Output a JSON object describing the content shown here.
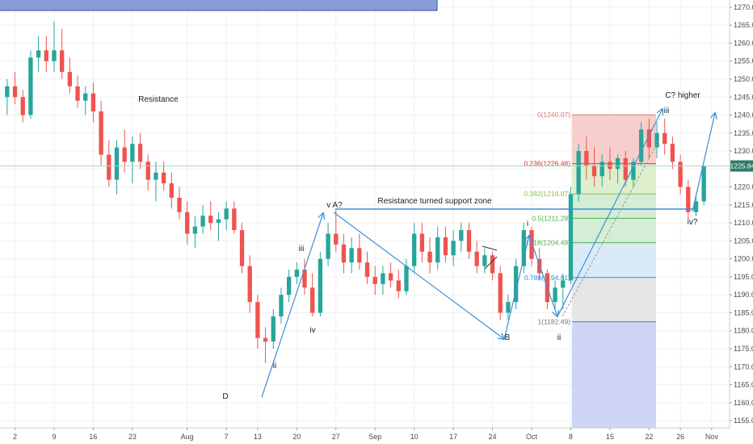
{
  "chart_data": {
    "type": "candlestick",
    "colors": {
      "up": "#26a69a",
      "down": "#ef5350",
      "grid": "#eef0f3",
      "annotation_line": "#3d8fd9",
      "current_price_line": "#a8d5c9",
      "price_badge": "#2e7d6a",
      "fib_red": "#d32f2f",
      "fib_green": "#66bb6a",
      "fib_blue": "#2196f3",
      "fib_gray": "#9e9e9e",
      "overlay_box": "#8b9bd6"
    },
    "y_axis": {
      "ticks": [
        "1155.00",
        "1160.00",
        "1165.00",
        "1170.00",
        "1175.00",
        "1180.00",
        "1185.00",
        "1190.00",
        "1195.00",
        "1200.00",
        "1205.00",
        "1210.00",
        "1215.00",
        "1220.00",
        "1225.00",
        "1230.00",
        "1235.00",
        "1240.00",
        "1245.00",
        "1250.00",
        "1255.00",
        "1260.00",
        "1265.00",
        "1270.00"
      ],
      "range": [
        1153,
        1272
      ],
      "last_price": "1225.84"
    },
    "x_axis": {
      "ticks": [
        {
          "label": "2",
          "bar": 1
        },
        {
          "label": "9",
          "bar": 6
        },
        {
          "label": "16",
          "bar": 11
        },
        {
          "label": "23",
          "bar": 16
        },
        {
          "label": "Aug",
          "bar": 23
        },
        {
          "label": "7",
          "bar": 28
        },
        {
          "label": "13",
          "bar": 32
        },
        {
          "label": "20",
          "bar": 37
        },
        {
          "label": "27",
          "bar": 42
        },
        {
          "label": "Sep",
          "bar": 47
        },
        {
          "label": "10",
          "bar": 52
        },
        {
          "label": "17",
          "bar": 57
        },
        {
          "label": "24",
          "bar": 62
        },
        {
          "label": "Oct",
          "bar": 67
        },
        {
          "label": "8",
          "bar": 72
        },
        {
          "label": "15",
          "bar": 77
        },
        {
          "label": "22",
          "bar": 82
        },
        {
          "label": "26",
          "bar": 86
        },
        {
          "label": "Nov",
          "bar": 90
        }
      ]
    },
    "candles": [
      [
        1245,
        1250,
        1240,
        1248
      ],
      [
        1248,
        1252,
        1243,
        1245
      ],
      [
        1245,
        1247,
        1238,
        1240
      ],
      [
        1240,
        1258,
        1239,
        1256
      ],
      [
        1256,
        1262,
        1252,
        1258
      ],
      [
        1258,
        1262,
        1252,
        1255
      ],
      [
        1255,
        1266,
        1252,
        1258
      ],
      [
        1258,
        1264,
        1250,
        1252
      ],
      [
        1252,
        1256,
        1246,
        1248
      ],
      [
        1248,
        1251,
        1242,
        1244
      ],
      [
        1244,
        1248,
        1240,
        1246
      ],
      [
        1246,
        1249,
        1238,
        1241
      ],
      [
        1241,
        1244,
        1226,
        1229
      ],
      [
        1229,
        1233,
        1220,
        1222
      ],
      [
        1222,
        1233,
        1218,
        1231
      ],
      [
        1231,
        1236,
        1224,
        1227
      ],
      [
        1227,
        1234,
        1221,
        1232
      ],
      [
        1232,
        1235,
        1225,
        1227
      ],
      [
        1227,
        1229,
        1219,
        1222
      ],
      [
        1222,
        1227,
        1216,
        1224
      ],
      [
        1224,
        1227,
        1219,
        1221
      ],
      [
        1221,
        1224,
        1214,
        1217
      ],
      [
        1217,
        1220,
        1211,
        1213
      ],
      [
        1213,
        1216,
        1204,
        1207
      ],
      [
        1207,
        1212,
        1203,
        1209
      ],
      [
        1209,
        1215,
        1207,
        1212
      ],
      [
        1212,
        1216,
        1208,
        1210
      ],
      [
        1210,
        1213,
        1205,
        1211
      ],
      [
        1211,
        1216,
        1208,
        1214
      ],
      [
        1214,
        1216,
        1207,
        1208
      ],
      [
        1208,
        1210,
        1196,
        1198
      ],
      [
        1198,
        1201,
        1185,
        1188
      ],
      [
        1188,
        1190,
        1175,
        1178
      ],
      [
        1178,
        1181,
        1171,
        1177
      ],
      [
        1177,
        1186,
        1175,
        1184
      ],
      [
        1184,
        1192,
        1182,
        1190
      ],
      [
        1190,
        1197,
        1188,
        1195
      ],
      [
        1195,
        1199,
        1193,
        1197
      ],
      [
        1197,
        1200,
        1190,
        1192
      ],
      [
        1192,
        1196,
        1184,
        1185
      ],
      [
        1185,
        1202,
        1184,
        1200
      ],
      [
        1200,
        1210,
        1198,
        1207
      ],
      [
        1207,
        1214,
        1202,
        1204
      ],
      [
        1204,
        1207,
        1196,
        1199
      ],
      [
        1199,
        1206,
        1196,
        1203
      ],
      [
        1203,
        1207,
        1197,
        1199
      ],
      [
        1199,
        1202,
        1193,
        1195
      ],
      [
        1195,
        1198,
        1190,
        1193
      ],
      [
        1193,
        1198,
        1190,
        1196
      ],
      [
        1196,
        1199,
        1192,
        1194
      ],
      [
        1194,
        1197,
        1189,
        1191
      ],
      [
        1191,
        1200,
        1190,
        1198
      ],
      [
        1198,
        1210,
        1196,
        1207
      ],
      [
        1207,
        1210,
        1199,
        1202
      ],
      [
        1202,
        1206,
        1196,
        1199
      ],
      [
        1199,
        1209,
        1197,
        1206
      ],
      [
        1206,
        1209,
        1199,
        1201
      ],
      [
        1201,
        1208,
        1198,
        1205
      ],
      [
        1205,
        1210,
        1202,
        1208
      ],
      [
        1208,
        1210,
        1200,
        1202
      ],
      [
        1202,
        1205,
        1196,
        1198
      ],
      [
        1198,
        1203,
        1196,
        1201
      ],
      [
        1201,
        1202,
        1194,
        1196
      ],
      [
        1196,
        1198,
        1183,
        1185
      ],
      [
        1185,
        1190,
        1183,
        1188
      ],
      [
        1188,
        1200,
        1186,
        1198
      ],
      [
        1198,
        1210,
        1196,
        1208
      ],
      [
        1208,
        1209,
        1198,
        1200
      ],
      [
        1200,
        1203,
        1194,
        1196
      ],
      [
        1196,
        1197,
        1186,
        1188
      ],
      [
        1188,
        1194,
        1186,
        1192
      ],
      [
        1192,
        1196,
        1186,
        1194
      ],
      [
        1194,
        1220,
        1193,
        1218
      ],
      [
        1218,
        1232,
        1216,
        1230
      ],
      [
        1230,
        1234,
        1222,
        1226
      ],
      [
        1226,
        1231,
        1220,
        1223
      ],
      [
        1223,
        1229,
        1220,
        1227
      ],
      [
        1227,
        1231,
        1222,
        1225
      ],
      [
        1225,
        1229,
        1221,
        1228
      ],
      [
        1228,
        1230,
        1220,
        1222
      ],
      [
        1222,
        1228,
        1220,
        1227
      ],
      [
        1227,
        1238,
        1226,
        1236
      ],
      [
        1236,
        1239,
        1228,
        1231
      ],
      [
        1231,
        1238,
        1228,
        1235
      ],
      [
        1235,
        1239,
        1229,
        1232
      ],
      [
        1232,
        1234,
        1225,
        1227
      ],
      [
        1227,
        1229,
        1218,
        1220
      ],
      [
        1220,
        1222,
        1211,
        1213
      ],
      [
        1213,
        1218,
        1212,
        1216
      ],
      [
        1216,
        1226,
        1215,
        1225.84
      ]
    ],
    "fibonacci": [
      {
        "label": "0(1240.07)",
        "level": 1240.07,
        "color": "#e57373"
      },
      {
        "label": "0.236(1226.48)",
        "level": 1226.48,
        "color": "#d32f2f"
      },
      {
        "label": "0.382(1218.07)",
        "level": 1218.07,
        "color": "#8bc34a"
      },
      {
        "label": "0.5(1211.28)",
        "level": 1211.28,
        "color": "#4caf50"
      },
      {
        "label": "0.618(1204.49)",
        "level": 1204.49,
        "color": "#4caf50"
      },
      {
        "label": "0.786(1194.81)",
        "level": 1194.81,
        "color": "#2196f3"
      },
      {
        "label": "1(1182.49)",
        "level": 1182.49,
        "color": "#757575"
      }
    ],
    "annotations": [
      "Resistance",
      "Resistance turned support zone",
      "v A?",
      "iii",
      "iv",
      "ii",
      "D",
      "B",
      "i",
      "ii",
      "iii",
      "C? higher",
      "iv?"
    ]
  }
}
